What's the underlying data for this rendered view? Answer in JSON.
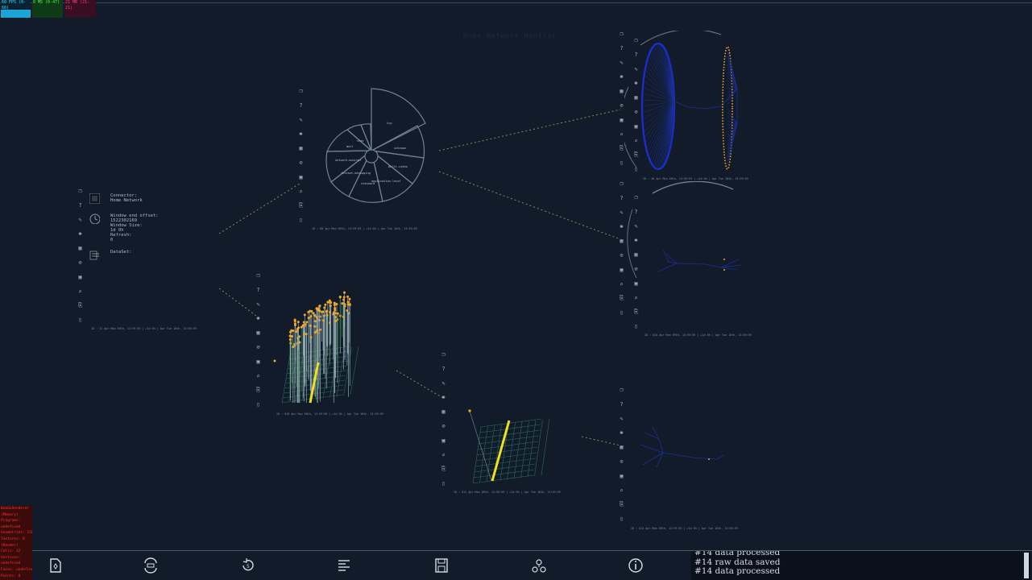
{
  "perf": {
    "fps": "60 FPS (0-60)",
    "ms": "0 MS (0-47)",
    "mb": "21 MB (21-21)"
  },
  "faint_title": "Home Network Monitor",
  "tool_icons": [
    "copy-icon",
    "help-icon",
    "pencil-icon",
    "bug-icon",
    "grid-icon",
    "filter-icon",
    "image-icon",
    "search-icon",
    "export-icon",
    "trash-icon"
  ],
  "nodes": {
    "connector": {
      "connector_label": "Connector:",
      "connector_value": "Home Network",
      "window_label": "Window end offset:",
      "window_value": "1522302169",
      "size_label": "Window Size:",
      "size_value": "1d 0h",
      "refresh_label": "Refresh:",
      "refresh_value": "0",
      "dataset_label": "DataSet:",
      "footer": "ID : 31        Apr Mon 09th, 13:59:59 | +1d 0h | Apr Tue 10th, 13:59:59"
    },
    "pie": {
      "footer": "ID : 60        Apr Mon 09th, 13:59:59 | +1d 0h | Apr Tue 10th, 13:59:59",
      "labels": [
        "tcp",
        "unknown",
        "multi-video",
        "application-level",
        "standard",
        "instant-messaging",
        "network-monitor",
        "mail",
        "chat"
      ]
    },
    "bar3d": {
      "footer": "ID : 810        Apr Mon 09th, 13:59:59 | +1d 0h | Apr Tue 10th, 13:59:59"
    },
    "bar3d_small": {
      "footer": "ID : 811        Apr Mon 09th, 13:59:59 | +1d 0h | Apr Tue 10th, 13:59:59"
    },
    "graph_top": {
      "footer": "ID : 40        Apr Mon 09th, 13:59:59 | +1d 0h | Apr Tue 10th, 13:59:59"
    },
    "graph_mid": {
      "footer": "ID : 814        Apr Mon 09th, 13:59:59 | +1d 0h | Apr Tue 10th, 13:59:59"
    },
    "graph_bottom": {
      "footer": "ID : 812        Apr Mon 09th, 13:59:59 | +1d 0h | Apr Tue 10th, 13:59:59"
    }
  },
  "gl_info": [
    "WebGLRenderer",
    "(Memory)",
    "Programs:",
    "undefined",
    "Geometries: 158",
    "Textures: 0",
    "(Render)",
    "Calls: 12",
    "Vertices:",
    "undefined",
    "Faces: undefined",
    "Points: 0"
  ],
  "bottom_bar": {
    "buttons": [
      "add-node",
      "sync",
      "refresh",
      "align",
      "save",
      "network",
      "info"
    ]
  },
  "console": {
    "lines": [
      "#14 data processed",
      "#14 raw data saved",
      "#14 data processed"
    ]
  },
  "colors": {
    "background": "#121b2a",
    "accent_yellow": "#f0e020",
    "orange": "#f5a623",
    "blue": "#1a2fd6",
    "line": "#6f8294"
  }
}
